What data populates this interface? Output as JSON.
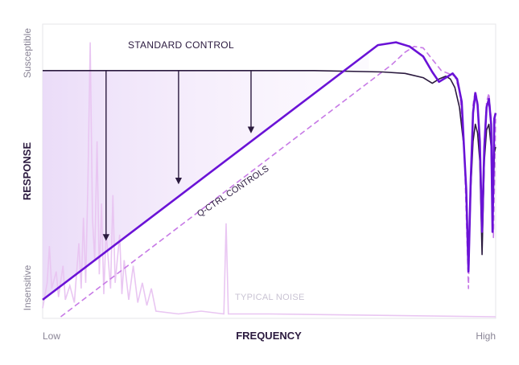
{
  "chart_data": {
    "type": "line",
    "xlabel": "FREQUENCY",
    "ylabel": "RESPONSE",
    "x_ticks": {
      "low": "Low",
      "high": "High"
    },
    "y_ticks": {
      "high": "Susceptible",
      "low": "Insensitive"
    },
    "xlim": [
      0,
      1
    ],
    "ylim": [
      0,
      1
    ],
    "annotations": {
      "standard": "STANDARD CONTROL",
      "qctrl": "Q-CTRL CONTROLS",
      "noise": "TYPICAL NOISE"
    },
    "series": [
      {
        "name": "STANDARD CONTROL",
        "color": "#2b1a3f",
        "points": [
          [
            0,
            0.87
          ],
          [
            0.6,
            0.87
          ],
          [
            0.75,
            0.865
          ],
          [
            0.8,
            0.86
          ],
          [
            0.84,
            0.845
          ],
          [
            0.86,
            0.825
          ],
          [
            0.875,
            0.84
          ],
          [
            0.89,
            0.85
          ],
          [
            0.9,
            0.84
          ],
          [
            0.91,
            0.81
          ],
          [
            0.92,
            0.74
          ],
          [
            0.93,
            0.6
          ],
          [
            0.935,
            0.45
          ],
          [
            0.94,
            0.16
          ],
          [
            0.945,
            0.45
          ],
          [
            0.95,
            0.62
          ],
          [
            0.955,
            0.68
          ],
          [
            0.96,
            0.65
          ],
          [
            0.965,
            0.55
          ],
          [
            0.97,
            0.22
          ],
          [
            0.975,
            0.55
          ],
          [
            0.98,
            0.66
          ],
          [
            0.985,
            0.68
          ],
          [
            0.99,
            0.6
          ],
          [
            0.993,
            0.3
          ],
          [
            0.997,
            0.58
          ],
          [
            1.0,
            0.6
          ]
        ]
      },
      {
        "name": "Q-CTRL CONTROLS",
        "color": "#6a12d6",
        "style": "solid",
        "points": [
          [
            0,
            0.06
          ],
          [
            0.74,
            0.96
          ],
          [
            0.78,
            0.97
          ],
          [
            0.81,
            0.955
          ],
          [
            0.84,
            0.92
          ],
          [
            0.86,
            0.865
          ],
          [
            0.875,
            0.83
          ],
          [
            0.89,
            0.845
          ],
          [
            0.905,
            0.86
          ],
          [
            0.915,
            0.84
          ],
          [
            0.925,
            0.76
          ],
          [
            0.93,
            0.6
          ],
          [
            0.935,
            0.45
          ],
          [
            0.94,
            0.16
          ],
          [
            0.945,
            0.48
          ],
          [
            0.95,
            0.72
          ],
          [
            0.955,
            0.79
          ],
          [
            0.96,
            0.75
          ],
          [
            0.965,
            0.62
          ],
          [
            0.97,
            0.3
          ],
          [
            0.975,
            0.6
          ],
          [
            0.98,
            0.74
          ],
          [
            0.985,
            0.77
          ],
          [
            0.99,
            0.68
          ],
          [
            0.993,
            0.3
          ],
          [
            0.997,
            0.7
          ],
          [
            1.0,
            0.72
          ]
        ]
      },
      {
        "name": "Q-CTRL CONTROLS (alt)",
        "color": "#c77ae6",
        "style": "dashed",
        "points": [
          [
            0.04,
            0.0
          ],
          [
            0.77,
            0.89
          ],
          [
            0.8,
            0.935
          ],
          [
            0.82,
            0.955
          ],
          [
            0.84,
            0.95
          ],
          [
            0.86,
            0.91
          ],
          [
            0.88,
            0.87
          ],
          [
            0.895,
            0.86
          ],
          [
            0.91,
            0.85
          ],
          [
            0.92,
            0.8
          ],
          [
            0.93,
            0.62
          ],
          [
            0.94,
            0.1
          ],
          [
            0.945,
            0.5
          ],
          [
            0.95,
            0.75
          ],
          [
            0.955,
            0.8
          ],
          [
            0.96,
            0.76
          ],
          [
            0.965,
            0.6
          ],
          [
            0.97,
            0.25
          ],
          [
            0.975,
            0.62
          ],
          [
            0.98,
            0.76
          ],
          [
            0.985,
            0.79
          ],
          [
            0.99,
            0.7
          ],
          [
            0.995,
            0.28
          ],
          [
            1.0,
            0.7
          ]
        ]
      },
      {
        "name": "TYPICAL NOISE",
        "color": "#e9c6f2",
        "points": [
          [
            0.0,
            0.03
          ],
          [
            0.01,
            0.12
          ],
          [
            0.015,
            0.25
          ],
          [
            0.02,
            0.1
          ],
          [
            0.03,
            0.16
          ],
          [
            0.035,
            0.07
          ],
          [
            0.045,
            0.18
          ],
          [
            0.05,
            0.06
          ],
          [
            0.06,
            0.11
          ],
          [
            0.07,
            0.05
          ],
          [
            0.08,
            0.26
          ],
          [
            0.085,
            0.1
          ],
          [
            0.09,
            0.35
          ],
          [
            0.095,
            0.12
          ],
          [
            0.1,
            0.48
          ],
          [
            0.105,
            0.97
          ],
          [
            0.11,
            0.35
          ],
          [
            0.115,
            0.2
          ],
          [
            0.12,
            0.62
          ],
          [
            0.125,
            0.15
          ],
          [
            0.13,
            0.4
          ],
          [
            0.135,
            0.08
          ],
          [
            0.14,
            0.3
          ],
          [
            0.15,
            0.1
          ],
          [
            0.155,
            0.43
          ],
          [
            0.16,
            0.12
          ],
          [
            0.17,
            0.29
          ],
          [
            0.175,
            0.08
          ],
          [
            0.18,
            0.2
          ],
          [
            0.19,
            0.06
          ],
          [
            0.2,
            0.18
          ],
          [
            0.21,
            0.05
          ],
          [
            0.22,
            0.12
          ],
          [
            0.23,
            0.04
          ],
          [
            0.24,
            0.1
          ],
          [
            0.25,
            0.02
          ],
          [
            0.3,
            0.01
          ],
          [
            0.35,
            0.02
          ],
          [
            0.4,
            0.01
          ],
          [
            0.405,
            0.33
          ],
          [
            0.41,
            0.01
          ],
          [
            0.5,
            0.01
          ],
          [
            1.0,
            0.0
          ]
        ]
      }
    ],
    "arrows": [
      {
        "x": 0.14,
        "from_y": 0.87,
        "to_y": 0.28
      },
      {
        "x": 0.3,
        "from_y": 0.87,
        "to_y": 0.48
      },
      {
        "x": 0.46,
        "from_y": 0.87,
        "to_y": 0.66
      }
    ],
    "grid": false,
    "legend": "none"
  }
}
